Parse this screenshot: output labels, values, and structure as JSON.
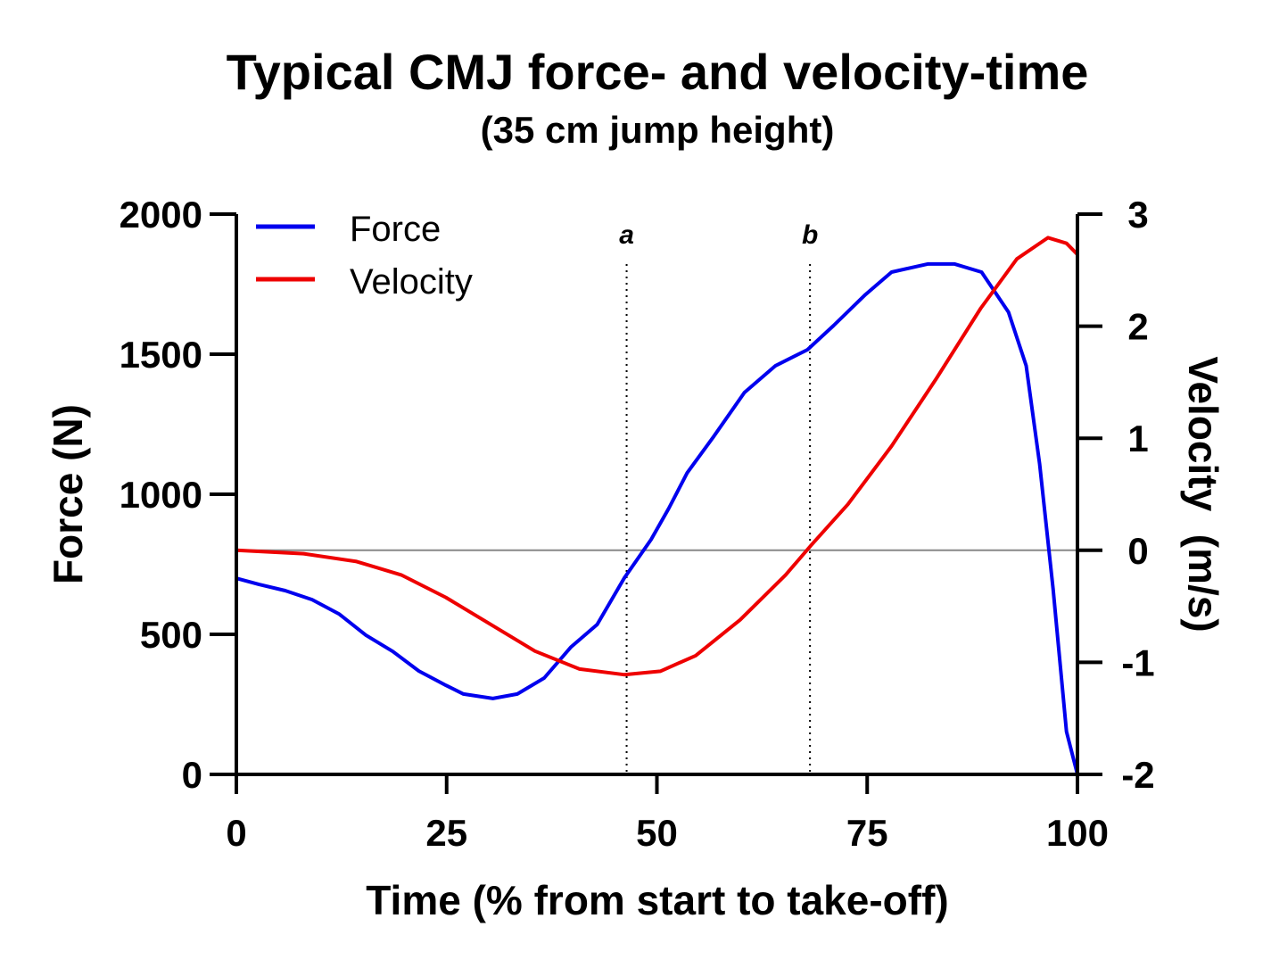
{
  "chart_data": {
    "type": "line",
    "title": "Typical CMJ force- and velocity-time",
    "subtitle": "(35 cm jump height)",
    "xlabel": "Time (% from start to take-off)",
    "ylabel": "Force (N)",
    "y2label": "Velocity  (m/s)",
    "xlim": [
      0,
      100
    ],
    "ylim": [
      0,
      2000
    ],
    "y2lim": [
      -2,
      3
    ],
    "xticks": [
      "0",
      "25",
      "50",
      "75",
      "100"
    ],
    "yticks": [
      "0",
      "500",
      "1000",
      "1500",
      "2000"
    ],
    "y2ticks": [
      "-2",
      "-1",
      "0",
      "1",
      "2",
      "3"
    ],
    "grid": false,
    "legend_position": "top-left",
    "zero_line_velocity": 0,
    "markers": [
      {
        "label": "a",
        "x": 46.4
      },
      {
        "label": "b",
        "x": 68.2
      }
    ],
    "series": [
      {
        "name": "Force",
        "axis": "left",
        "color": "#0000ee",
        "x": [
          0,
          2.7,
          5.8,
          9,
          12.2,
          15.4,
          18.6,
          21.7,
          24.9,
          27,
          30.5,
          33.4,
          36.6,
          39.8,
          42.9,
          46.1,
          49.3,
          51.4,
          53.6,
          56.7,
          60.4,
          64.1,
          67.9,
          71,
          74.8,
          77.9,
          82.2,
          85.4,
          88.6,
          91.8,
          93.9,
          95.5,
          97.1,
          98.7,
          100
        ],
        "y": [
          700,
          678,
          656,
          624,
          573,
          497,
          439,
          369,
          318,
          287,
          271,
          287,
          344,
          455,
          535,
          700,
          838,
          949,
          1076,
          1204,
          1363,
          1459,
          1516,
          1602,
          1713,
          1793,
          1822,
          1822,
          1793,
          1650,
          1459,
          1108,
          662,
          153,
          0
        ]
      },
      {
        "name": "Velocity",
        "axis": "right",
        "color": "#ee0000",
        "x": [
          0,
          8,
          14.3,
          19.6,
          24.9,
          30.2,
          35.5,
          40.8,
          46.1,
          50.4,
          54.6,
          59.9,
          65.3,
          68.4,
          72.7,
          77.9,
          83.2,
          88.5,
          92.8,
          96.5,
          98.7,
          100
        ],
        "y": [
          0,
          -0.03,
          -0.1,
          -0.22,
          -0.42,
          -0.66,
          -0.9,
          -1.06,
          -1.11,
          -1.08,
          -0.94,
          -0.62,
          -0.22,
          0.05,
          0.41,
          0.93,
          1.53,
          2.16,
          2.6,
          2.79,
          2.74,
          2.64
        ]
      }
    ]
  }
}
